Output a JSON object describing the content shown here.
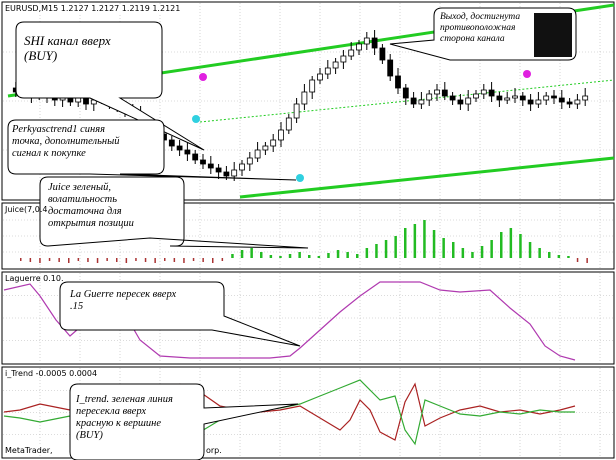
{
  "window": {
    "symbol_header": "EURUSD,M15",
    "quotes": "1.2127 1.2127 1.2119 1.2121",
    "footer": "MetaTrader,",
    "footer_tail": "orp."
  },
  "indicators": {
    "juice_label": "Juice(7,0.4",
    "laguerre_label": "Laguerre 0.1",
    "laguerre_value": "0.",
    "itrend_label": "i_Trend -0.0005 0.0004"
  },
  "callouts": {
    "shi": {
      "lines": [
        "SHI канал вверх",
        "(BUY)"
      ]
    },
    "exit": {
      "lines": [
        "Выход, достигнута",
        "противоположная",
        "сторона канала"
      ]
    },
    "perky": {
      "lines": [
        "Perkyasctrend1 синяя",
        "точка, дополнительный",
        "сигнал к покупке"
      ]
    },
    "juice": {
      "lines": [
        "Juice зеленый,",
        "волатильность",
        "достаточна для",
        "открытия позиции"
      ]
    },
    "laguerre": {
      "lines": [
        "La Guerre пересек вверх",
        ".15"
      ]
    },
    "itrend": {
      "lines": [
        "I_trend. зеленая линия",
        "пересекла вверх",
        "красную к вершине",
        "(BUY)"
      ]
    }
  },
  "colors": {
    "channel": "#22cc22",
    "candle": "#000000",
    "dot_magenta": "#e020e0",
    "dot_cyan": "#30d0e0",
    "juice_bar": "#22bb22",
    "laguerre_line": "#b03ab0",
    "itrend_green": "#33aa33",
    "itrend_red": "#aa2222",
    "grid": "#b8b8b8"
  }
}
